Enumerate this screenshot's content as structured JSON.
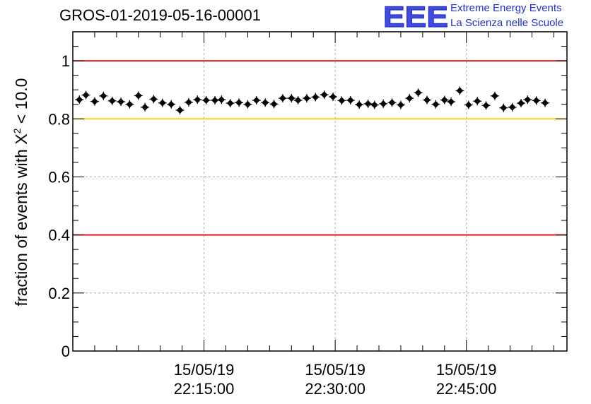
{
  "header": {
    "title": "GROS-01-2019-05-16-00001",
    "logo_text": "EEE",
    "brand_line1": "Extreme Energy Events",
    "brand_line2": "La Scienza nelle Scuole"
  },
  "colors": {
    "brand_blue": "#1f2fd6",
    "limit_red": "#e00000",
    "threshold_yellow": "#ffc800",
    "marker": "#000000",
    "grid": "#9a9a9a"
  },
  "chart_data": {
    "type": "scatter",
    "title": "GROS-01-2019-05-16-00001",
    "ylabel": "fraction of events with χ² < 10.0",
    "ylabel_parts": {
      "prefix": "fraction of events with X",
      "sup": "2",
      "suffix": " < 10.0"
    },
    "ylim": [
      0,
      1.1
    ],
    "yticks": [
      0,
      0.2,
      0.4,
      0.6,
      0.8,
      1
    ],
    "ytick_labels": [
      "0",
      "0.2",
      "0.4",
      "0.6",
      "0.8",
      "1"
    ],
    "xlim": [
      "2019-05-15 22:00:00",
      "2019-05-15 22:56:30"
    ],
    "xticks": [
      "2019-05-15 22:15:00",
      "2019-05-15 22:30:00",
      "2019-05-15 22:45:00"
    ],
    "xtick_labels": [
      [
        "15/05/19",
        "22:15:00"
      ],
      [
        "15/05/19",
        "22:30:00"
      ],
      [
        "15/05/19",
        "22:45:00"
      ]
    ],
    "grid": true,
    "reference_lines": [
      {
        "y": 1.0,
        "color": "#e00000"
      },
      {
        "y": 0.8,
        "color": "#ffc800"
      },
      {
        "y": 0.4,
        "color": "#e00000"
      }
    ],
    "points": [
      {
        "x": "22:00:45",
        "y": 0.866
      },
      {
        "x": "22:01:30",
        "y": 0.882
      },
      {
        "x": "22:02:30",
        "y": 0.86
      },
      {
        "x": "22:03:30",
        "y": 0.879
      },
      {
        "x": "22:04:30",
        "y": 0.862
      },
      {
        "x": "22:05:30",
        "y": 0.859
      },
      {
        "x": "22:06:30",
        "y": 0.85
      },
      {
        "x": "22:07:30",
        "y": 0.88
      },
      {
        "x": "22:08:15",
        "y": 0.84
      },
      {
        "x": "22:09:15",
        "y": 0.868
      },
      {
        "x": "22:10:15",
        "y": 0.855
      },
      {
        "x": "22:11:15",
        "y": 0.85
      },
      {
        "x": "22:12:15",
        "y": 0.83
      },
      {
        "x": "22:13:15",
        "y": 0.857
      },
      {
        "x": "22:14:15",
        "y": 0.866
      },
      {
        "x": "22:15:15",
        "y": 0.864
      },
      {
        "x": "22:16:15",
        "y": 0.864
      },
      {
        "x": "22:17:00",
        "y": 0.866
      },
      {
        "x": "22:18:00",
        "y": 0.854
      },
      {
        "x": "22:19:00",
        "y": 0.856
      },
      {
        "x": "22:20:00",
        "y": 0.85
      },
      {
        "x": "22:21:00",
        "y": 0.864
      },
      {
        "x": "22:22:00",
        "y": 0.856
      },
      {
        "x": "22:23:00",
        "y": 0.851
      },
      {
        "x": "22:24:00",
        "y": 0.871
      },
      {
        "x": "22:25:00",
        "y": 0.871
      },
      {
        "x": "22:25:45",
        "y": 0.864
      },
      {
        "x": "22:26:45",
        "y": 0.871
      },
      {
        "x": "22:27:45",
        "y": 0.875
      },
      {
        "x": "22:28:45",
        "y": 0.883
      },
      {
        "x": "22:29:45",
        "y": 0.876
      },
      {
        "x": "22:30:45",
        "y": 0.863
      },
      {
        "x": "22:31:45",
        "y": 0.864
      },
      {
        "x": "22:32:45",
        "y": 0.849
      },
      {
        "x": "22:33:45",
        "y": 0.852
      },
      {
        "x": "22:34:30",
        "y": 0.848
      },
      {
        "x": "22:35:30",
        "y": 0.852
      },
      {
        "x": "22:36:30",
        "y": 0.856
      },
      {
        "x": "22:37:30",
        "y": 0.848
      },
      {
        "x": "22:38:30",
        "y": 0.871
      },
      {
        "x": "22:39:30",
        "y": 0.89
      },
      {
        "x": "22:40:30",
        "y": 0.865
      },
      {
        "x": "22:41:30",
        "y": 0.85
      },
      {
        "x": "22:42:30",
        "y": 0.865
      },
      {
        "x": "22:43:15",
        "y": 0.859
      },
      {
        "x": "22:44:15",
        "y": 0.897
      },
      {
        "x": "22:45:15",
        "y": 0.848
      },
      {
        "x": "22:46:15",
        "y": 0.861
      },
      {
        "x": "22:47:15",
        "y": 0.846
      },
      {
        "x": "22:48:15",
        "y": 0.879
      },
      {
        "x": "22:49:15",
        "y": 0.838
      },
      {
        "x": "22:50:15",
        "y": 0.84
      },
      {
        "x": "22:51:15",
        "y": 0.854
      },
      {
        "x": "22:52:00",
        "y": 0.866
      },
      {
        "x": "22:53:00",
        "y": 0.863
      },
      {
        "x": "22:54:00",
        "y": 0.855
      }
    ]
  }
}
